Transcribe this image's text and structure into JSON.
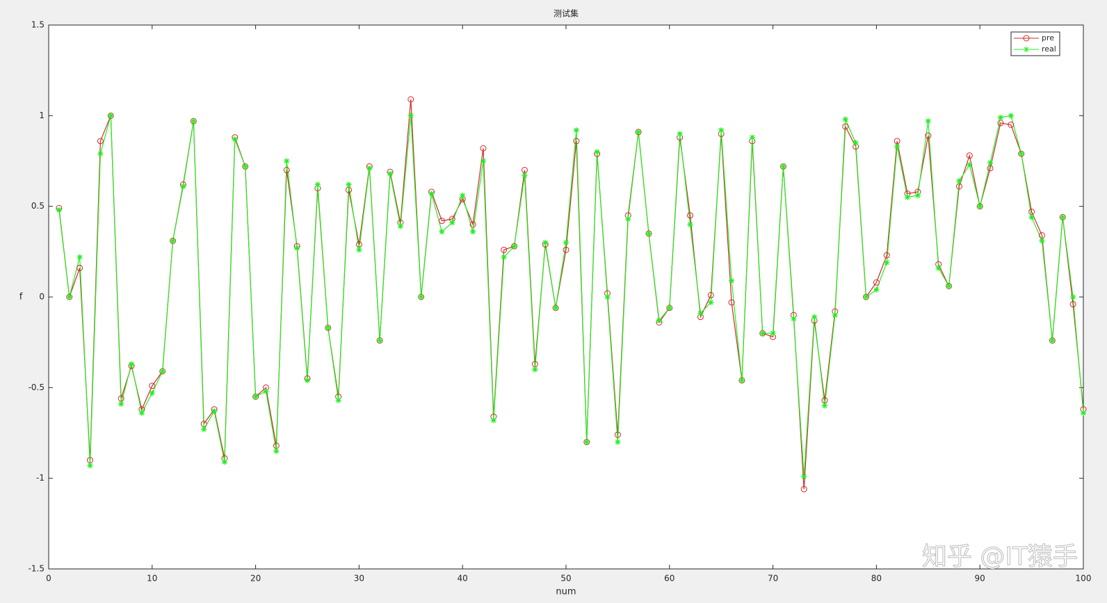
{
  "chart_data": {
    "type": "line",
    "title": "测试集",
    "x_label": "num",
    "y_label": "f",
    "watermark": "知乎 @IT猿手",
    "x": [
      1,
      2,
      3,
      4,
      5,
      6,
      7,
      8,
      9,
      10,
      11,
      12,
      13,
      14,
      15,
      16,
      17,
      18,
      19,
      20,
      21,
      22,
      23,
      24,
      25,
      26,
      27,
      28,
      29,
      30,
      31,
      32,
      33,
      34,
      35,
      36,
      37,
      38,
      39,
      40,
      41,
      42,
      43,
      44,
      45,
      46,
      47,
      48,
      49,
      50,
      51,
      52,
      53,
      54,
      55,
      56,
      57,
      58,
      59,
      60,
      61,
      62,
      63,
      64,
      65,
      66,
      67,
      68,
      69,
      70,
      71,
      72,
      73,
      74,
      75,
      76,
      77,
      78,
      79,
      80,
      81,
      82,
      83,
      84,
      85,
      86,
      87,
      88,
      89,
      90,
      91,
      92,
      93,
      94,
      95,
      96,
      97,
      98,
      99,
      100
    ],
    "series": [
      {
        "name": "pre",
        "color": "#d62728",
        "marker": "circle",
        "values": [
          0.49,
          0,
          0.16,
          -0.9,
          0.86,
          1.0,
          -0.56,
          -0.38,
          -0.62,
          -0.49,
          -0.41,
          0.31,
          0.62,
          0.97,
          -0.7,
          -0.62,
          -0.89,
          0.88,
          0.72,
          -0.55,
          -0.5,
          -0.82,
          0.7,
          0.28,
          -0.45,
          0.6,
          -0.17,
          -0.55,
          0.59,
          0.29,
          0.72,
          -0.24,
          0.69,
          0.41,
          1.09,
          0,
          0.58,
          0.42,
          0.43,
          0.54,
          0.4,
          0.82,
          -0.66,
          0.26,
          0.28,
          0.7,
          -0.37,
          0.29,
          -0.06,
          0.26,
          0.86,
          -0.8,
          0.79,
          0.02,
          -0.76,
          0.45,
          0.91,
          0.35,
          -0.14,
          -0.06,
          0.88,
          0.45,
          -0.11,
          0.01,
          0.9,
          -0.03,
          -0.46,
          0.86,
          -0.2,
          -0.22,
          0.72,
          -0.1,
          -1.06,
          -0.13,
          -0.57,
          -0.08,
          0.94,
          0.83,
          0,
          0.08,
          0.23,
          0.86,
          0.57,
          0.58,
          0.89,
          0.18,
          0.06,
          0.61,
          0.78,
          0.5,
          0.71,
          0.96,
          0.95,
          0.79,
          0.47,
          0.34,
          -0.24,
          0.44,
          -0.04,
          -0.62
        ]
      },
      {
        "name": "real",
        "color": "#22ee22",
        "marker": "asterisk",
        "values": [
          0.48,
          0,
          0.22,
          -0.93,
          0.79,
          1.0,
          -0.59,
          -0.37,
          -0.64,
          -0.53,
          -0.41,
          0.31,
          0.61,
          0.97,
          -0.73,
          -0.63,
          -0.91,
          0.87,
          0.72,
          -0.55,
          -0.52,
          -0.85,
          0.75,
          0.27,
          -0.46,
          0.62,
          -0.17,
          -0.57,
          0.62,
          0.26,
          0.71,
          -0.24,
          0.68,
          0.39,
          1.0,
          0,
          0.57,
          0.36,
          0.41,
          0.56,
          0.36,
          0.75,
          -0.68,
          0.22,
          0.28,
          0.67,
          -0.4,
          0.3,
          -0.06,
          0.3,
          0.92,
          -0.8,
          0.8,
          0,
          -0.8,
          0.43,
          0.91,
          0.35,
          -0.13,
          -0.06,
          0.9,
          0.4,
          -0.09,
          -0.03,
          0.92,
          0.09,
          -0.46,
          0.88,
          -0.2,
          -0.2,
          0.72,
          -0.12,
          -0.99,
          -0.11,
          -0.6,
          -0.1,
          0.98,
          0.85,
          0,
          0.04,
          0.19,
          0.83,
          0.55,
          0.56,
          0.97,
          0.16,
          0.06,
          0.64,
          0.73,
          0.5,
          0.74,
          0.99,
          1.0,
          0.79,
          0.44,
          0.31,
          -0.24,
          0.44,
          0,
          -0.64
        ]
      }
    ],
    "xlim": [
      0,
      100
    ],
    "xticks": [
      0,
      10,
      20,
      30,
      40,
      50,
      60,
      70,
      80,
      90,
      100
    ],
    "ylim": [
      -1.5,
      1.5
    ],
    "yticks": [
      -1.5,
      -1,
      -0.5,
      0,
      0.5,
      1,
      1.5
    ],
    "grid": false,
    "legend": "upper right"
  }
}
